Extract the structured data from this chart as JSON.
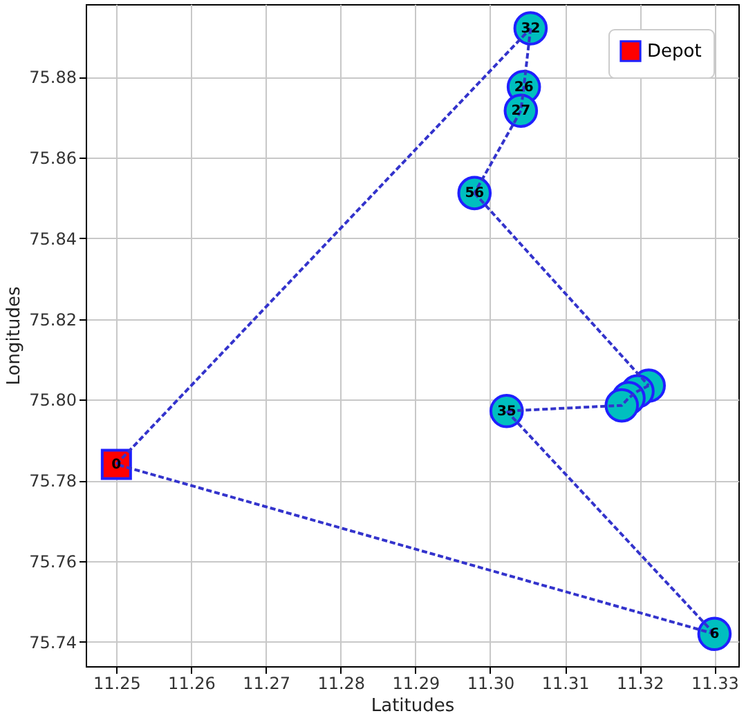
{
  "chart_data": {
    "type": "line",
    "xlabel": "Latitudes",
    "ylabel": "Longitudes",
    "xlim": [
      11.2459,
      11.3332
    ],
    "ylim": [
      75.734,
      75.898
    ],
    "xticks": [
      11.25,
      11.26,
      11.27,
      11.28,
      11.29,
      {
        "value": 11.3,
        "label": "11.30"
      },
      11.31,
      11.32,
      11.33
    ],
    "yticks": [
      75.74,
      75.76,
      75.78,
      {
        "value": 75.8,
        "label": "75.80"
      },
      75.82,
      75.84,
      75.86,
      75.88
    ],
    "grid": true,
    "legend": "top right",
    "series": [
      {
        "color": "#3333cc",
        "line_style": "dashed",
        "marker": "none",
        "x": [
          11.25,
          11.3054
        ],
        "values": [
          75.784,
          75.892
        ]
      },
      {
        "color": "#3333cc",
        "line_style": "dashed",
        "marker": "none",
        "x": [
          11.3054,
          11.3045,
          11.3041,
          11.2979
        ],
        "values": [
          75.892,
          75.8775,
          75.8716,
          75.8512
        ]
      },
      {
        "color": "#3333cc",
        "line_style": "dashed",
        "marker": "none",
        "x": [
          11.2979,
          11.3212
        ],
        "values": [
          75.8512,
          75.8035
        ]
      },
      {
        "color": "#3333cc",
        "line_style": "dashed",
        "marker": "none",
        "x": [
          11.3212,
          11.3197,
          11.3185,
          11.3176,
          11.3022
        ],
        "values": [
          75.8035,
          75.8021,
          75.8004,
          75.7986,
          75.7972
        ]
      },
      {
        "color": "#3333cc",
        "line_style": "dashed",
        "marker": "none",
        "x": [
          11.3022,
          11.33
        ],
        "values": [
          75.7972,
          75.742
        ]
      },
      {
        "color": "#3333cc",
        "line_style": "dashed",
        "marker": "none",
        "x": [
          11.33,
          11.25
        ],
        "values": [
          75.742,
          75.784
        ]
      },
      {
        "type": "scatter",
        "color": "#00bfbf",
        "marker": "circle",
        "x": [
          11.3054,
          11.3045,
          11.3041,
          11.2979,
          11.3212,
          11.3197,
          11.3185,
          11.3176,
          11.3022,
          11.33
        ],
        "values": [
          75.892,
          75.8775,
          75.8716,
          75.8512,
          75.8035,
          75.8021,
          75.8004,
          75.7986,
          75.7972,
          75.742
        ]
      },
      {
        "type": "scatter",
        "name": "Depot",
        "color": "#ff0000",
        "marker": "square",
        "x": [
          11.25
        ],
        "values": [
          75.784
        ]
      }
    ],
    "annotations": [
      {
        "text": "0",
        "x": 11.25,
        "y": 75.784
      },
      {
        "text": "32",
        "x": 11.3054,
        "y": 75.892
      },
      {
        "text": "26",
        "x": 11.3045,
        "y": 75.8775
      },
      {
        "text": "27",
        "x": 11.3041,
        "y": 75.8716
      },
      {
        "text": "56",
        "x": 11.2979,
        "y": 75.8512
      },
      {
        "text": "35",
        "x": 11.3022,
        "y": 75.7972
      },
      {
        "text": "6",
        "x": 11.33,
        "y": 75.742
      }
    ]
  }
}
